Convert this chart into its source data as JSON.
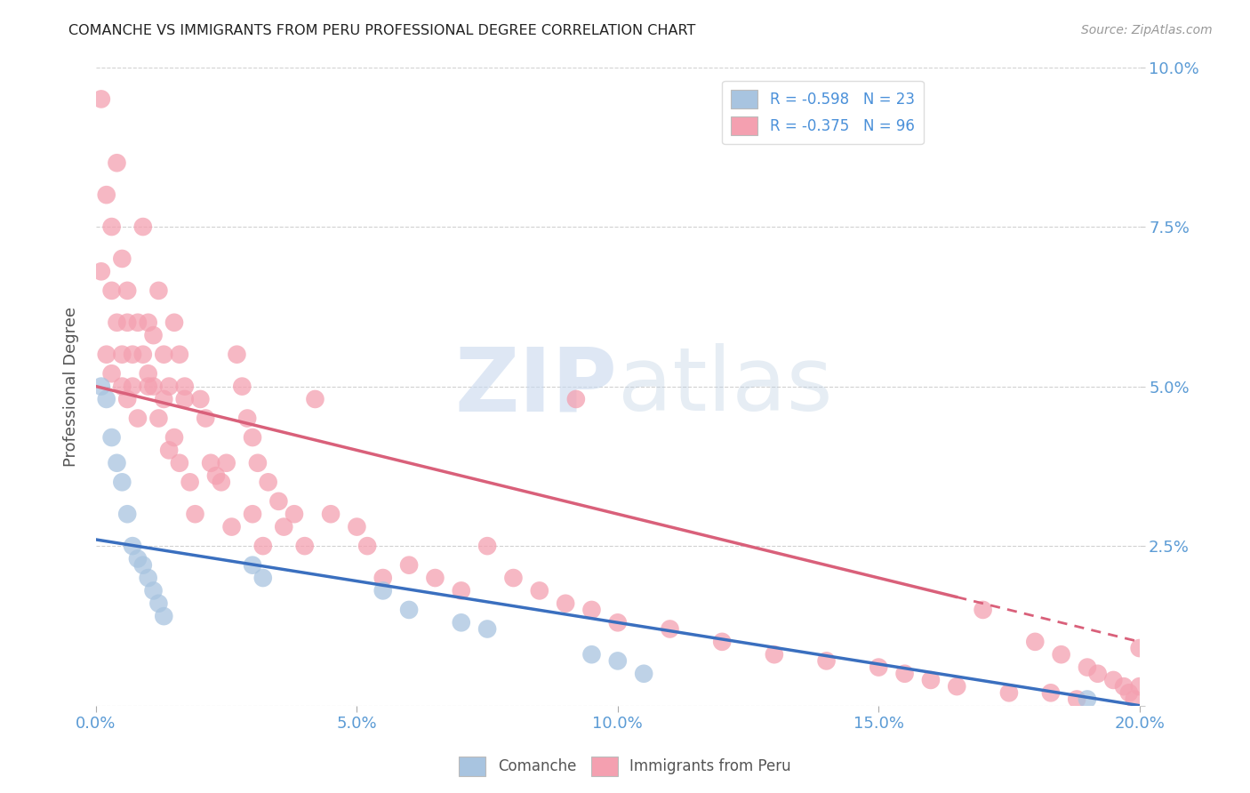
{
  "title": "COMANCHE VS IMMIGRANTS FROM PERU PROFESSIONAL DEGREE CORRELATION CHART",
  "source": "Source: ZipAtlas.com",
  "ylabel": "Professional Degree",
  "watermark_zip": "ZIP",
  "watermark_atlas": "atlas",
  "xlim": [
    0.0,
    0.2
  ],
  "ylim": [
    0.0,
    0.1
  ],
  "xticks": [
    0.0,
    0.05,
    0.1,
    0.15,
    0.2
  ],
  "yticks": [
    0.0,
    0.025,
    0.05,
    0.075,
    0.1
  ],
  "xtick_labels": [
    "0.0%",
    "5.0%",
    "10.0%",
    "15.0%",
    "20.0%"
  ],
  "ytick_labels_right": [
    "",
    "2.5%",
    "5.0%",
    "7.5%",
    "10.0%"
  ],
  "comanche_color": "#a8c4e0",
  "peru_color": "#f4a0b0",
  "comanche_line_color": "#3a6fbf",
  "peru_line_color": "#d9607a",
  "legend_r_comanche": "R = -0.598",
  "legend_n_comanche": "N = 23",
  "legend_r_peru": "R = -0.375",
  "legend_n_peru": "N = 96",
  "background_color": "#ffffff",
  "grid_color": "#cccccc",
  "title_color": "#222222",
  "tick_color": "#5b9bd5",
  "ylabel_color": "#555555",
  "comanche_x": [
    0.001,
    0.002,
    0.003,
    0.004,
    0.005,
    0.006,
    0.007,
    0.008,
    0.009,
    0.01,
    0.011,
    0.012,
    0.013,
    0.03,
    0.032,
    0.055,
    0.06,
    0.07,
    0.075,
    0.095,
    0.1,
    0.105,
    0.19
  ],
  "comanche_y": [
    0.05,
    0.048,
    0.042,
    0.038,
    0.035,
    0.03,
    0.025,
    0.023,
    0.022,
    0.02,
    0.018,
    0.016,
    0.014,
    0.022,
    0.02,
    0.018,
    0.015,
    0.013,
    0.012,
    0.008,
    0.007,
    0.005,
    0.001
  ],
  "peru_x": [
    0.001,
    0.001,
    0.002,
    0.002,
    0.003,
    0.003,
    0.003,
    0.004,
    0.004,
    0.005,
    0.005,
    0.005,
    0.006,
    0.006,
    0.006,
    0.007,
    0.007,
    0.008,
    0.008,
    0.009,
    0.009,
    0.01,
    0.01,
    0.01,
    0.011,
    0.011,
    0.012,
    0.012,
    0.013,
    0.013,
    0.014,
    0.014,
    0.015,
    0.015,
    0.016,
    0.016,
    0.017,
    0.017,
    0.018,
    0.019,
    0.02,
    0.021,
    0.022,
    0.023,
    0.024,
    0.025,
    0.026,
    0.027,
    0.028,
    0.029,
    0.03,
    0.03,
    0.031,
    0.032,
    0.033,
    0.035,
    0.036,
    0.038,
    0.04,
    0.042,
    0.045,
    0.05,
    0.052,
    0.055,
    0.06,
    0.065,
    0.07,
    0.075,
    0.08,
    0.085,
    0.09,
    0.092,
    0.095,
    0.1,
    0.11,
    0.12,
    0.13,
    0.14,
    0.15,
    0.155,
    0.16,
    0.165,
    0.17,
    0.175,
    0.18,
    0.183,
    0.185,
    0.188,
    0.19,
    0.192,
    0.195,
    0.197,
    0.198,
    0.199,
    0.2,
    0.2
  ],
  "peru_y": [
    0.095,
    0.068,
    0.08,
    0.055,
    0.075,
    0.065,
    0.052,
    0.06,
    0.085,
    0.07,
    0.055,
    0.05,
    0.065,
    0.06,
    0.048,
    0.055,
    0.05,
    0.06,
    0.045,
    0.055,
    0.075,
    0.052,
    0.06,
    0.05,
    0.058,
    0.05,
    0.065,
    0.045,
    0.055,
    0.048,
    0.05,
    0.04,
    0.06,
    0.042,
    0.055,
    0.038,
    0.05,
    0.048,
    0.035,
    0.03,
    0.048,
    0.045,
    0.038,
    0.036,
    0.035,
    0.038,
    0.028,
    0.055,
    0.05,
    0.045,
    0.042,
    0.03,
    0.038,
    0.025,
    0.035,
    0.032,
    0.028,
    0.03,
    0.025,
    0.048,
    0.03,
    0.028,
    0.025,
    0.02,
    0.022,
    0.02,
    0.018,
    0.025,
    0.02,
    0.018,
    0.016,
    0.048,
    0.015,
    0.013,
    0.012,
    0.01,
    0.008,
    0.007,
    0.006,
    0.005,
    0.004,
    0.003,
    0.015,
    0.002,
    0.01,
    0.002,
    0.008,
    0.001,
    0.006,
    0.005,
    0.004,
    0.003,
    0.002,
    0.001,
    0.009,
    0.003
  ],
  "blue_line_x0": 0.0,
  "blue_line_y0": 0.026,
  "blue_line_x1": 0.2,
  "blue_line_y1": 0.0,
  "pink_line_x0": 0.0,
  "pink_line_y0": 0.05,
  "pink_line_x1": 0.2,
  "pink_line_y1": 0.01
}
